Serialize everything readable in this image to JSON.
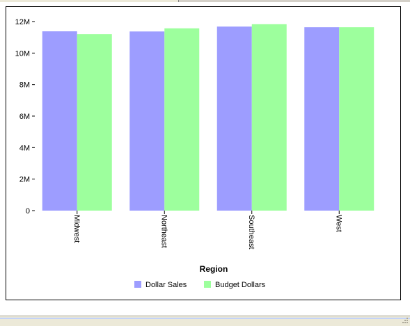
{
  "chart_data": {
    "type": "bar",
    "title": "",
    "xlabel": "Region",
    "ylabel": "",
    "categories": [
      "Midwest",
      "Northeast",
      "Southeast",
      "West"
    ],
    "series": [
      {
        "name": "Dollar Sales",
        "color": "#9d9dff",
        "values": [
          11380000,
          11370000,
          11680000,
          11640000
        ]
      },
      {
        "name": "Budget Dollars",
        "color": "#9dff9d",
        "values": [
          11200000,
          11570000,
          11830000,
          11640000
        ]
      }
    ],
    "ylim": [
      0,
      12000000
    ],
    "yticks": [
      {
        "value": 0,
        "label": "0"
      },
      {
        "value": 2000000,
        "label": "2M"
      },
      {
        "value": 4000000,
        "label": "4M"
      },
      {
        "value": 6000000,
        "label": "6M"
      },
      {
        "value": 8000000,
        "label": "8M"
      },
      {
        "value": 10000000,
        "label": "10M"
      },
      {
        "value": 12000000,
        "label": "12M"
      }
    ],
    "grid": false,
    "legend_position": "bottom"
  },
  "colors": {
    "axis": "#000000",
    "status_bar": "#ece9d8"
  }
}
